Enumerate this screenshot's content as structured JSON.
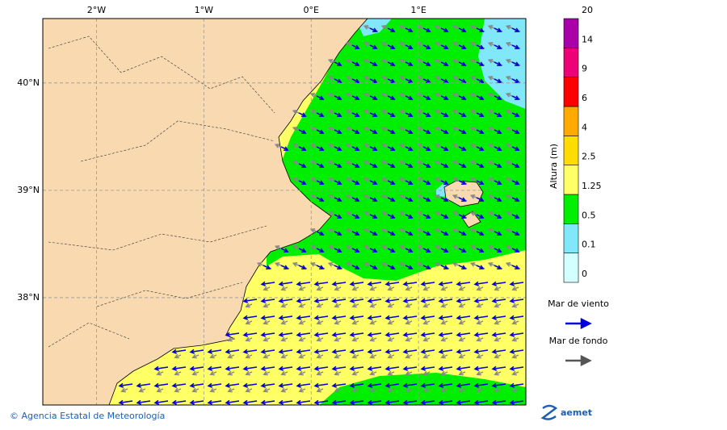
{
  "map": {
    "xlim": [
      -2.5,
      2.0
    ],
    "ylim": [
      37.0,
      40.6
    ],
    "xticks": [
      {
        "value": -2,
        "label": "2°W"
      },
      {
        "value": -1,
        "label": "1°W"
      },
      {
        "value": 0,
        "label": "0°E"
      },
      {
        "value": 1,
        "label": "1°E"
      }
    ],
    "yticks": [
      {
        "value": 40,
        "label": "40°N"
      },
      {
        "value": 39,
        "label": "39°N"
      },
      {
        "value": 38,
        "label": "38°N"
      }
    ]
  },
  "colorbar": {
    "title": "Altura (m)",
    "levels": [
      0,
      0.1,
      0.5,
      1.25,
      2.5,
      4,
      6,
      9,
      14,
      20
    ],
    "colors": [
      "#d2ffff",
      "#80e8f8",
      "#00ee00",
      "#ffff66",
      "#ffdd00",
      "#ffaa00",
      "#ff0000",
      "#ee0077",
      "#aa00aa"
    ]
  },
  "legend": [
    {
      "label": "Mar de viento",
      "color": "#0000dd"
    },
    {
      "label": "Mar de fondo",
      "color": "#555555"
    }
  ],
  "footer": {
    "credit": "© Agencia Estatal de Meteorología",
    "logo": "aemet"
  }
}
